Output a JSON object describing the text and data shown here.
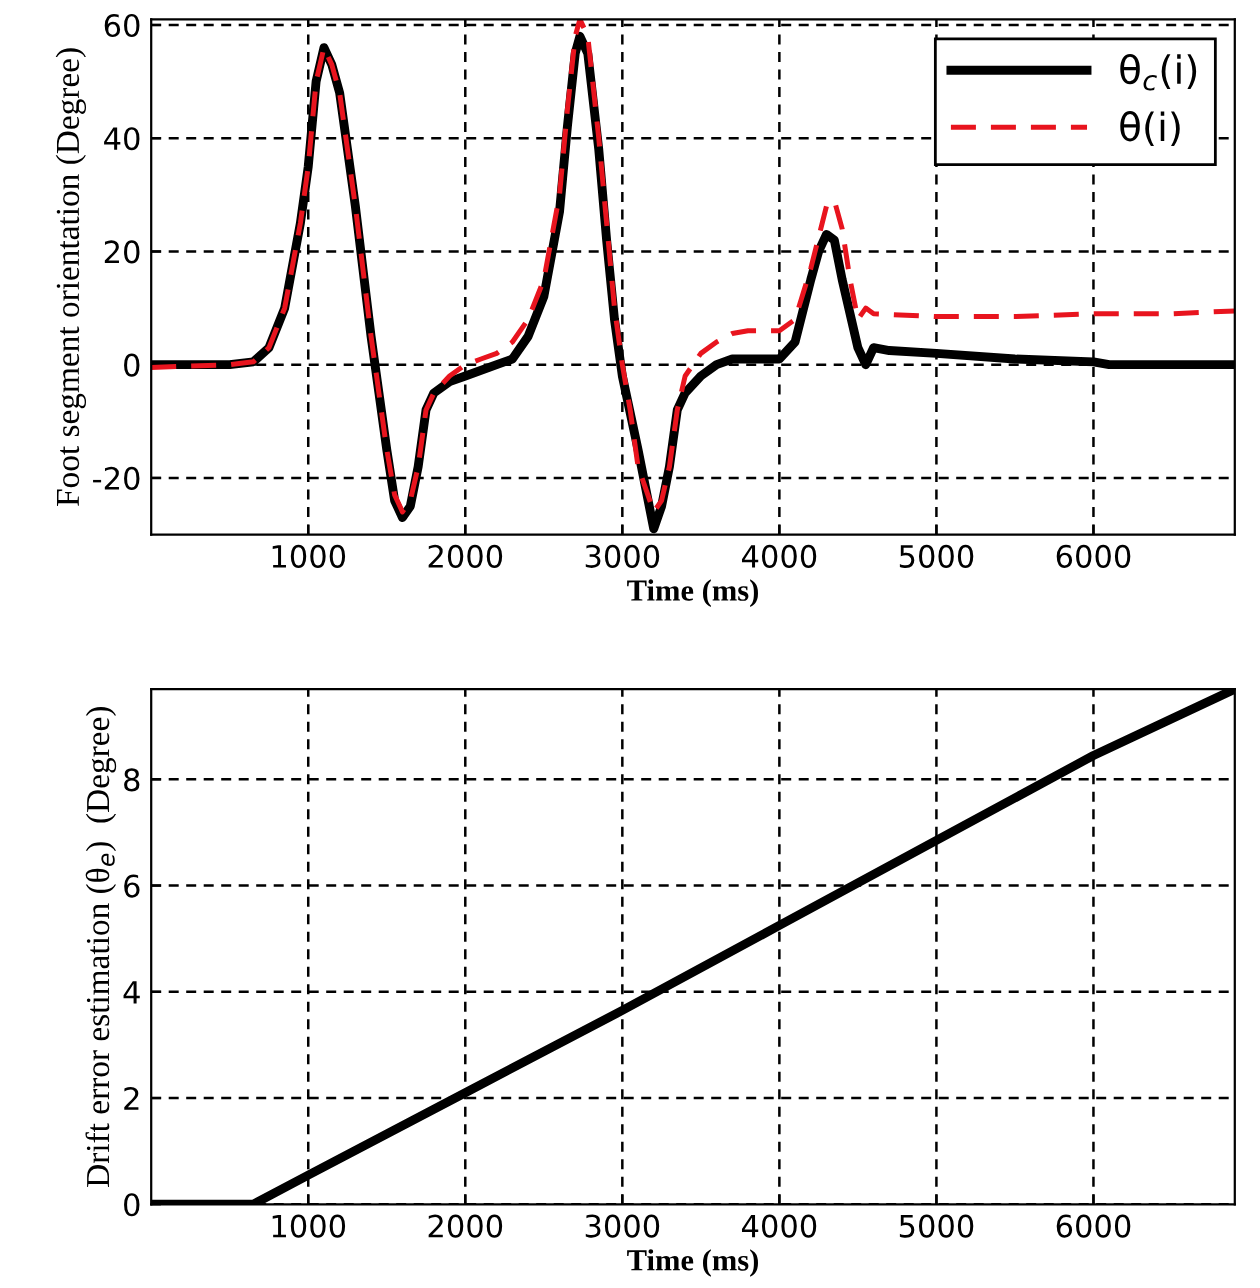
{
  "chart_data": [
    {
      "type": "line",
      "xlabel": "Time (ms)",
      "ylabel": "Foot segment orientation (Degree)",
      "xlim": [
        0,
        6900
      ],
      "ylim": [
        -30,
        61
      ],
      "xticks": [
        1000,
        2000,
        3000,
        4000,
        5000,
        6000
      ],
      "yticks": [
        -20,
        0,
        20,
        40,
        60
      ],
      "grid": true,
      "legend": "top right",
      "series": [
        {
          "name": "θ$_{c}$(i)",
          "color": "#000000",
          "line_style": "solid",
          "x": [
            0,
            500,
            650,
            750,
            850,
            950,
            1000,
            1050,
            1100,
            1150,
            1200,
            1300,
            1400,
            1450,
            1500,
            1550,
            1600,
            1650,
            1700,
            1750,
            1800,
            1900,
            2000,
            2200,
            2300,
            2400,
            2500,
            2600,
            2650,
            2700,
            2730,
            2780,
            2850,
            2900,
            2950,
            3000,
            3100,
            3200,
            3250,
            3300,
            3350,
            3400,
            3500,
            3600,
            3700,
            4000,
            4100,
            4200,
            4250,
            4300,
            4350,
            4400,
            4500,
            4550,
            4600,
            4700,
            5000,
            5500,
            6000,
            6100,
            6900
          ],
          "values": [
            0,
            0,
            0.5,
            3,
            10,
            25,
            35,
            50,
            56,
            53,
            48,
            28,
            5,
            -5,
            -15,
            -24,
            -27,
            -25,
            -18,
            -8,
            -5,
            -3,
            -2,
            0,
            1,
            5,
            12,
            27,
            42,
            55,
            58,
            55,
            38,
            22,
            8,
            -2,
            -15,
            -29,
            -25,
            -18,
            -8,
            -5,
            -2,
            0,
            1,
            1,
            4,
            15,
            20,
            23,
            22,
            15,
            3,
            0,
            3,
            2.5,
            2,
            1,
            0.5,
            0,
            0
          ]
        },
        {
          "name": "θ(i)",
          "color": "#e8141e",
          "line_style": "dashed",
          "x": [
            0,
            500,
            650,
            750,
            850,
            950,
            1000,
            1050,
            1100,
            1150,
            1200,
            1300,
            1400,
            1450,
            1500,
            1550,
            1600,
            1650,
            1700,
            1750,
            1800,
            1900,
            2000,
            2100,
            2200,
            2300,
            2400,
            2500,
            2600,
            2650,
            2700,
            2730,
            2780,
            2850,
            2900,
            2950,
            3000,
            3050,
            3100,
            3200,
            3250,
            3300,
            3350,
            3400,
            3500,
            3600,
            3700,
            3800,
            4000,
            4100,
            4200,
            4300,
            4350,
            4400,
            4450,
            4500,
            4550,
            4600,
            5000,
            5500,
            6000,
            6500,
            6900
          ],
          "values": [
            -0.5,
            0,
            0.5,
            3,
            10,
            25,
            35,
            50,
            56,
            53,
            48,
            28,
            5,
            -5,
            -15,
            -23,
            -26,
            -24,
            -18,
            -8,
            -5,
            -2,
            0,
            1,
            2,
            4,
            8,
            15,
            30,
            45,
            58,
            61,
            58,
            40,
            25,
            10,
            0,
            -8,
            -18,
            -26,
            -24,
            -18,
            -8,
            -2,
            2,
            4,
            5.5,
            6,
            6,
            8,
            17,
            28,
            29,
            24,
            15,
            8,
            10,
            9,
            8.5,
            8.5,
            9,
            9,
            9.5
          ]
        }
      ]
    },
    {
      "type": "line",
      "xlabel": "Time (ms)",
      "ylabel": "Drift error estimation (θ$_{e}$)  (Degree)",
      "xlim": [
        0,
        6900
      ],
      "ylim": [
        0,
        9.7
      ],
      "xticks": [
        1000,
        2000,
        3000,
        4000,
        5000,
        6000
      ],
      "yticks": [
        0,
        2,
        4,
        6,
        8
      ],
      "grid": true,
      "legend": false,
      "series": [
        {
          "color": "#000000",
          "line_style": "solid",
          "x": [
            0,
            650,
            1000,
            2000,
            3000,
            4000,
            5000,
            6000,
            6900
          ],
          "values": [
            0,
            0,
            0.55,
            2.1,
            3.65,
            5.25,
            6.85,
            8.45,
            9.7
          ]
        }
      ]
    }
  ]
}
